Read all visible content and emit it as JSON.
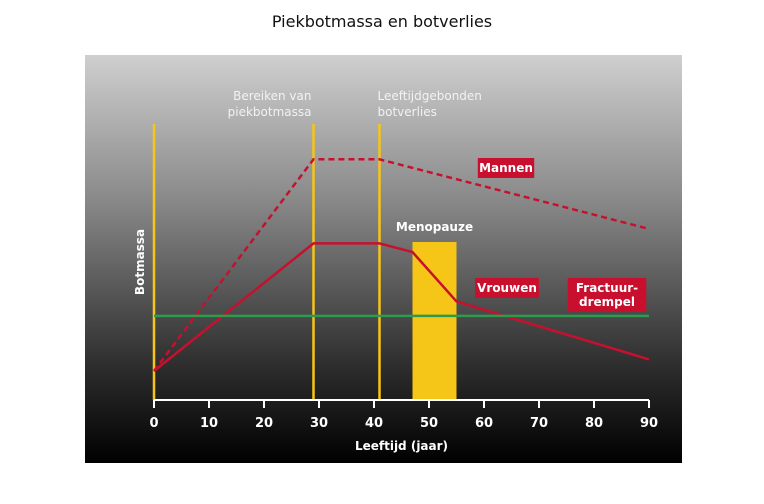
{
  "chart_data": {
    "type": "line",
    "title": "Piekbotmassa en botverlies",
    "xlabel": "Leeftijd (jaar)",
    "ylabel": "Botmassa",
    "xlim": [
      0,
      90
    ],
    "ylim": [
      0,
      10
    ],
    "x_ticks": [
      0,
      10,
      20,
      30,
      40,
      50,
      60,
      70,
      80,
      90
    ],
    "series": [
      {
        "name": "Mannen",
        "style": "dashed",
        "color": "#c8102e",
        "points": [
          [
            0,
            1.0
          ],
          [
            29,
            8.3
          ],
          [
            41,
            8.3
          ],
          [
            90,
            5.9
          ]
        ]
      },
      {
        "name": "Vrouwen",
        "style": "solid",
        "color": "#c8102e",
        "points": [
          [
            0,
            1.0
          ],
          [
            29,
            5.4
          ],
          [
            41,
            5.4
          ],
          [
            47,
            5.1
          ],
          [
            55,
            3.4
          ],
          [
            90,
            1.4
          ]
        ]
      },
      {
        "name": "Fractuurdrempel",
        "style": "solid",
        "color": "#2e9a4e",
        "points": [
          [
            0,
            2.9
          ],
          [
            90,
            2.9
          ]
        ]
      }
    ],
    "annotations": {
      "peak_line": {
        "x": 29,
        "label_lines": [
          "Bereiken van",
          "piekbotmassa"
        ]
      },
      "loss_line": {
        "x": 41,
        "label_lines": [
          "Leeftijdgebonden",
          "botverlies"
        ]
      },
      "menopause": {
        "x_from": 47,
        "x_to": 55,
        "label": "Menopauze"
      },
      "men_label": "Mannen",
      "women_label": "Vrouwen",
      "threshold_label_lines": [
        "Fractuur-",
        "drempel"
      ]
    },
    "colors": {
      "accent": "#c8102e",
      "marker": "#f5c518",
      "threshold": "#2e9a4e"
    },
    "grid": false,
    "legend": "none"
  }
}
